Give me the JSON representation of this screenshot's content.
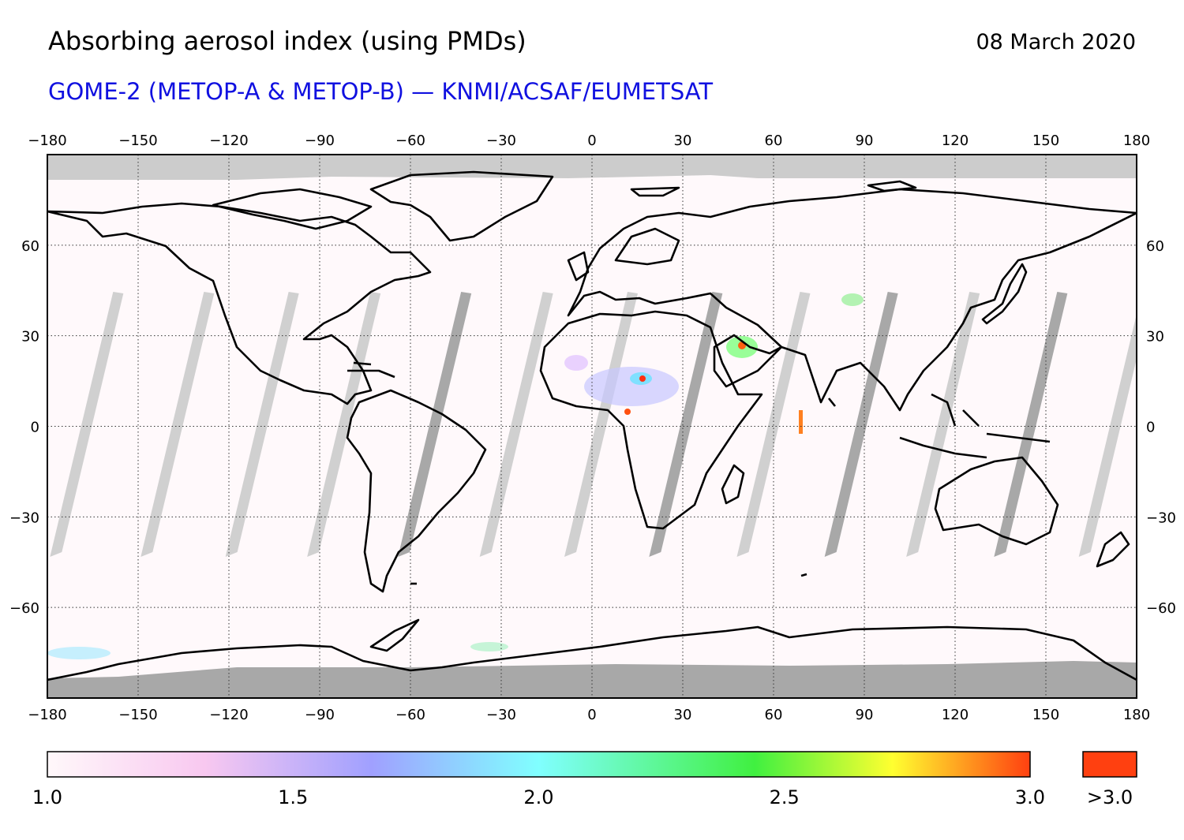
{
  "header": {
    "title": "Absorbing aerosol index (using PMDs)",
    "date": "08 March 2020",
    "subtitle": "GOME-2 (METOP-A & METOP-B) — KNMI/ACSAF/EUMETSAT"
  },
  "map": {
    "projection": "equirectangular",
    "lon_range": [
      -180,
      180
    ],
    "lat_range": [
      -90,
      90
    ],
    "lon_ticks": [
      "−180",
      "−150",
      "−120",
      "−90",
      "−60",
      "−30",
      "0",
      "30",
      "60",
      "90",
      "120",
      "150",
      "180"
    ],
    "lat_ticks": [
      "60",
      "30",
      "0",
      "−30",
      "−60"
    ],
    "lon_values": [
      -180,
      -150,
      -120,
      -90,
      -60,
      -30,
      0,
      30,
      60,
      90,
      120,
      150,
      180
    ],
    "lat_values": [
      60,
      30,
      0,
      -30,
      -60
    ],
    "gridlines": "dotted",
    "no_data_color": "#cccccc",
    "polar_night_color": "#a8a8a8",
    "background_color": "#fff9fb",
    "coastline_color": "#000000"
  },
  "colorbar": {
    "labels": [
      "1.0",
      "1.5",
      "2.0",
      "2.5",
      "3.0"
    ],
    "values": [
      1.0,
      1.5,
      2.0,
      2.5,
      3.0
    ],
    "overflow_label": ">3.0",
    "overflow_color": "#ff4010",
    "stops": [
      "#fff8fa",
      "#f8c8f0",
      "#a0a0ff",
      "#80ffff",
      "#40f040",
      "#ffff30",
      "#ff4010"
    ]
  }
}
